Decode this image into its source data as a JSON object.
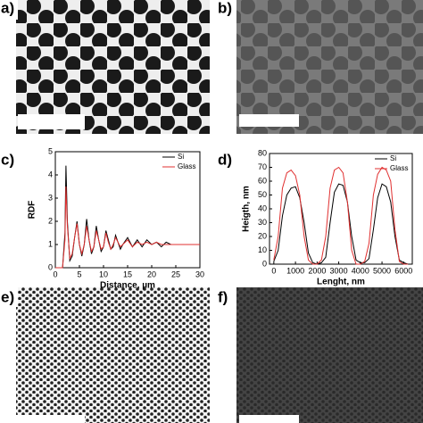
{
  "panels": {
    "a": "a)",
    "b": "b)",
    "c": "c)",
    "d": "d)",
    "e": "e)",
    "f": "f)"
  },
  "chart_data": [
    {
      "type": "line",
      "xlabel": "Distance, µm",
      "ylabel": "RDF",
      "x": [
        0,
        0.5,
        1,
        1.5,
        2,
        2.2,
        2.5,
        3,
        3.5,
        4,
        4.5,
        5,
        5.5,
        6,
        6.5,
        7,
        7.5,
        8,
        8.5,
        9,
        9.5,
        10,
        10.5,
        11,
        11.5,
        12,
        12.5,
        13,
        13.5,
        14,
        15,
        16,
        17,
        18,
        19,
        20,
        21,
        22,
        23,
        24,
        25,
        26,
        27,
        28,
        29,
        30
      ],
      "series": [
        {
          "name": "Si",
          "color": "#000000",
          "values": [
            0,
            0,
            0,
            0,
            1.5,
            4.4,
            2.0,
            0.3,
            0.5,
            1.3,
            2.0,
            1.0,
            0.5,
            1.0,
            2.1,
            1.2,
            0.6,
            0.9,
            1.8,
            1.2,
            0.7,
            0.9,
            1.6,
            1.2,
            0.8,
            0.9,
            1.4,
            1.1,
            0.8,
            1.0,
            1.3,
            0.9,
            1.2,
            0.9,
            1.2,
            1.0,
            1.1,
            0.9,
            1.1,
            1.0,
            1.0,
            1.0,
            1.0,
            1.0,
            1.0,
            1.0
          ]
        },
        {
          "name": "Glass",
          "color": "#e03030",
          "values": [
            0,
            0,
            0,
            0,
            1.2,
            3.5,
            1.8,
            0.4,
            0.6,
            1.3,
            1.9,
            1.0,
            0.6,
            1.0,
            1.8,
            1.2,
            0.7,
            0.9,
            1.6,
            1.2,
            0.8,
            0.9,
            1.5,
            1.1,
            0.8,
            1.0,
            1.3,
            1.1,
            0.9,
            1.0,
            1.2,
            0.9,
            1.1,
            1.0,
            1.1,
            1.0,
            1.1,
            1.0,
            1.0,
            1.0,
            1.0,
            1.0,
            1.0,
            1.0,
            1.0,
            1.0
          ]
        }
      ],
      "xlim": [
        0,
        30
      ],
      "xticks": [
        0,
        5,
        10,
        15,
        20,
        25,
        30
      ],
      "ylim": [
        0,
        5
      ],
      "yticks": [
        0,
        1,
        2,
        3,
        4,
        5
      ],
      "legend": "upper right"
    },
    {
      "type": "line",
      "xlabel": "Lenght, nm",
      "ylabel": "Heigth, nm",
      "x": [
        0,
        200,
        400,
        600,
        800,
        1000,
        1200,
        1400,
        1600,
        1800,
        2000,
        2200,
        2400,
        2600,
        2800,
        3000,
        3200,
        3400,
        3600,
        3800,
        4000,
        4200,
        4400,
        4600,
        4800,
        5000,
        5200,
        5400,
        5600,
        5800,
        6000,
        6200
      ],
      "series": [
        {
          "name": "Si",
          "color": "#000000",
          "values": [
            2,
            10,
            35,
            50,
            55,
            56,
            48,
            30,
            8,
            1,
            0,
            1,
            5,
            30,
            52,
            58,
            57,
            45,
            20,
            3,
            1,
            1,
            4,
            25,
            48,
            58,
            56,
            45,
            20,
            3,
            1,
            0
          ]
        },
        {
          "name": "Glass",
          "color": "#e03030",
          "values": [
            3,
            20,
            55,
            66,
            68,
            64,
            50,
            20,
            3,
            0,
            0,
            3,
            20,
            55,
            68,
            70,
            66,
            45,
            10,
            0,
            0,
            2,
            15,
            50,
            65,
            70,
            68,
            60,
            25,
            2,
            0,
            0
          ]
        }
      ],
      "xlim": [
        -200,
        6400
      ],
      "xticks": [
        0,
        1000,
        2000,
        3000,
        4000,
        5000,
        6000
      ],
      "ylim": [
        0,
        80
      ],
      "yticks": [
        0,
        10,
        20,
        30,
        40,
        50,
        60,
        70,
        80
      ],
      "legend": "upper right"
    }
  ]
}
